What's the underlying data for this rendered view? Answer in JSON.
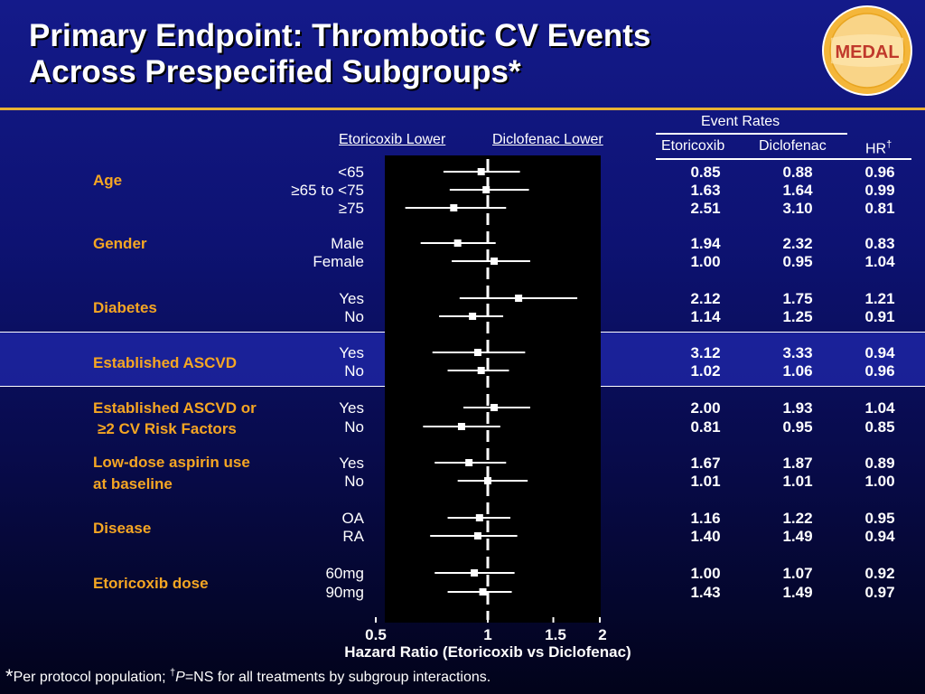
{
  "title": {
    "line1": "Primary Endpoint: Thrombotic CV Events",
    "line2": "Across Prespecified Subgroups*"
  },
  "logo": {
    "text": "MEDAL"
  },
  "colors": {
    "accent": "#f5a623",
    "rule": "#e8b234",
    "plot_bg": "#000000"
  },
  "headers": {
    "etoricoxib_lower": "Etoricoxib Lower",
    "diclofenac_lower": "Diclofenac Lower",
    "event_rates": "Event Rates",
    "col_etoricoxib": "Etoricoxib",
    "col_diclofenac": "Diclofenac",
    "col_hr": "HR",
    "col_hr_sup": "†"
  },
  "categories": [
    "Age",
    "Gender",
    "Diabetes",
    "Established ASCVD",
    "Established ASCVD or",
    "≥2 CV Risk Factors",
    "Low-dose aspirin use",
    "at baseline",
    "Disease",
    "Etoricoxib dose"
  ],
  "rows": [
    {
      "label": "<65",
      "etoricoxib": "0.85",
      "diclofenac": "0.88",
      "hr": "0.96"
    },
    {
      "label": "≥65 to <75",
      "etoricoxib": "1.63",
      "diclofenac": "1.64",
      "hr": "0.99"
    },
    {
      "label": "≥75",
      "etoricoxib": "2.51",
      "diclofenac": "3.10",
      "hr": "0.81"
    },
    {
      "label": "Male",
      "etoricoxib": "1.94",
      "diclofenac": "2.32",
      "hr": "0.83"
    },
    {
      "label": "Female",
      "etoricoxib": "1.00",
      "diclofenac": "0.95",
      "hr": "1.04"
    },
    {
      "label": "Yes",
      "etoricoxib": "2.12",
      "diclofenac": "1.75",
      "hr": "1.21"
    },
    {
      "label": "No",
      "etoricoxib": "1.14",
      "diclofenac": "1.25",
      "hr": "0.91"
    },
    {
      "label": "Yes",
      "etoricoxib": "3.12",
      "diclofenac": "3.33",
      "hr": "0.94"
    },
    {
      "label": "No",
      "etoricoxib": "1.02",
      "diclofenac": "1.06",
      "hr": "0.96"
    },
    {
      "label": "Yes",
      "etoricoxib": "2.00",
      "diclofenac": "1.93",
      "hr": "1.04"
    },
    {
      "label": "No",
      "etoricoxib": "0.81",
      "diclofenac": "0.95",
      "hr": "0.85"
    },
    {
      "label": "Yes",
      "etoricoxib": "1.67",
      "diclofenac": "1.87",
      "hr": "0.89"
    },
    {
      "label": "No",
      "etoricoxib": "1.01",
      "diclofenac": "1.01",
      "hr": "1.00"
    },
    {
      "label": "OA",
      "etoricoxib": "1.16",
      "diclofenac": "1.22",
      "hr": "0.95"
    },
    {
      "label": "RA",
      "etoricoxib": "1.40",
      "diclofenac": "1.49",
      "hr": "0.94"
    },
    {
      "label": "60mg",
      "etoricoxib": "1.00",
      "diclofenac": "1.07",
      "hr": "0.92"
    },
    {
      "label": "90mg",
      "etoricoxib": "1.43",
      "diclofenac": "1.49",
      "hr": "0.97"
    }
  ],
  "chart_data": {
    "type": "scatter",
    "log_x": true,
    "xlim": [
      0.5,
      2
    ],
    "xticks": [
      "0.5",
      "1",
      "1.5",
      "2"
    ],
    "xtick_values": [
      0.5,
      1,
      1.5,
      2
    ],
    "xlabel": "Hazard Ratio (Etoricoxib vs Diclofenac)",
    "reference_line": 1,
    "points": [
      {
        "hr": 0.96,
        "lo": 0.76,
        "hi": 1.22
      },
      {
        "hr": 0.99,
        "lo": 0.79,
        "hi": 1.29
      },
      {
        "hr": 0.81,
        "lo": 0.6,
        "hi": 1.12
      },
      {
        "hr": 0.83,
        "lo": 0.66,
        "hi": 1.05
      },
      {
        "hr": 1.04,
        "lo": 0.8,
        "hi": 1.3
      },
      {
        "hr": 1.21,
        "lo": 0.84,
        "hi": 1.74
      },
      {
        "hr": 0.91,
        "lo": 0.74,
        "hi": 1.1
      },
      {
        "hr": 0.94,
        "lo": 0.71,
        "hi": 1.26
      },
      {
        "hr": 0.96,
        "lo": 0.78,
        "hi": 1.14
      },
      {
        "hr": 1.04,
        "lo": 0.86,
        "hi": 1.3
      },
      {
        "hr": 0.85,
        "lo": 0.67,
        "hi": 1.08
      },
      {
        "hr": 0.89,
        "lo": 0.72,
        "hi": 1.12
      },
      {
        "hr": 1.0,
        "lo": 0.83,
        "hi": 1.28
      },
      {
        "hr": 0.95,
        "lo": 0.78,
        "hi": 1.15
      },
      {
        "hr": 0.94,
        "lo": 0.7,
        "hi": 1.2
      },
      {
        "hr": 0.92,
        "lo": 0.72,
        "hi": 1.18
      },
      {
        "hr": 0.97,
        "lo": 0.78,
        "hi": 1.16
      }
    ]
  },
  "footnote": {
    "star": "*",
    "text1": "Per protocol population; ",
    "dagger": "†",
    "p": "P",
    "text2": "=NS for all treatments by subgroup interactions."
  }
}
